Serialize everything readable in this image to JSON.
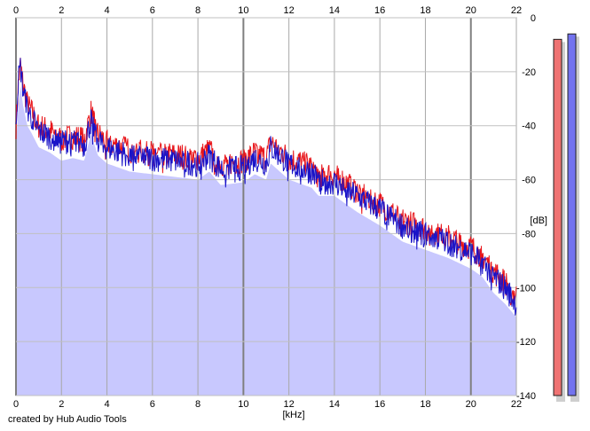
{
  "chart_data": {
    "type": "area",
    "xlabel": "[kHz]",
    "ylabel": "[dB]",
    "xlim": [
      0,
      22
    ],
    "ylim": [
      -140,
      0
    ],
    "x_ticks": [
      0,
      2,
      4,
      6,
      8,
      10,
      12,
      14,
      16,
      18,
      20,
      22
    ],
    "y_ticks": [
      0,
      -20,
      -40,
      -60,
      -80,
      -100,
      -120,
      -140
    ],
    "grid": true,
    "series": [
      {
        "color": "#e8151a",
        "x": [
          0,
          0.1,
          0.2,
          0.3,
          0.5,
          0.7,
          1.0,
          1.5,
          2.0,
          2.5,
          3.0,
          3.3,
          3.6,
          4.0,
          5.0,
          6.0,
          7.0,
          8.0,
          8.5,
          9.0,
          10.0,
          10.5,
          11.0,
          11.2,
          12.0,
          13.0,
          13.3,
          14.0,
          15.0,
          16.0,
          16.5,
          17.0,
          18.0,
          19.0,
          20.0,
          20.5,
          21.0,
          21.5,
          22.0
        ],
        "values": [
          -40,
          -25,
          -17,
          -24,
          -32,
          -35,
          -40,
          -42,
          -45,
          -44,
          -45,
          -35,
          -43,
          -46,
          -49,
          -50,
          -51,
          -52,
          -49,
          -54,
          -53,
          -50,
          -52,
          -46,
          -52,
          -55,
          -58,
          -58,
          -64,
          -69,
          -72,
          -75,
          -78,
          -81,
          -85,
          -88,
          -94,
          -98,
          -103
        ]
      },
      {
        "color": "#1a14c8",
        "x": [
          0,
          0.1,
          0.2,
          0.3,
          0.5,
          0.7,
          1.0,
          1.5,
          2.0,
          2.5,
          3.0,
          3.3,
          3.6,
          4.0,
          5.0,
          6.0,
          7.0,
          8.0,
          8.5,
          9.0,
          10.0,
          10.5,
          11.0,
          11.2,
          12.0,
          13.0,
          13.3,
          14.0,
          15.0,
          16.0,
          16.5,
          17.0,
          18.0,
          19.0,
          20.0,
          20.5,
          21.0,
          21.5,
          22.0
        ],
        "values": [
          -38,
          -23,
          -18,
          -26,
          -34,
          -37,
          -42,
          -44,
          -46,
          -45,
          -47,
          -38,
          -45,
          -48,
          -51,
          -52,
          -53,
          -54,
          -51,
          -56,
          -55,
          -52,
          -54,
          -48,
          -54,
          -57,
          -60,
          -61,
          -66,
          -71,
          -74,
          -77,
          -80,
          -83,
          -87,
          -90,
          -96,
          -100,
          -106
        ]
      }
    ],
    "fill_color": "#c8c8fe",
    "meters": [
      {
        "color": "#ef7373",
        "value": -8
      },
      {
        "color": "#7373ef",
        "value": -6
      }
    ]
  },
  "footer": "created by Hub Audio Tools"
}
